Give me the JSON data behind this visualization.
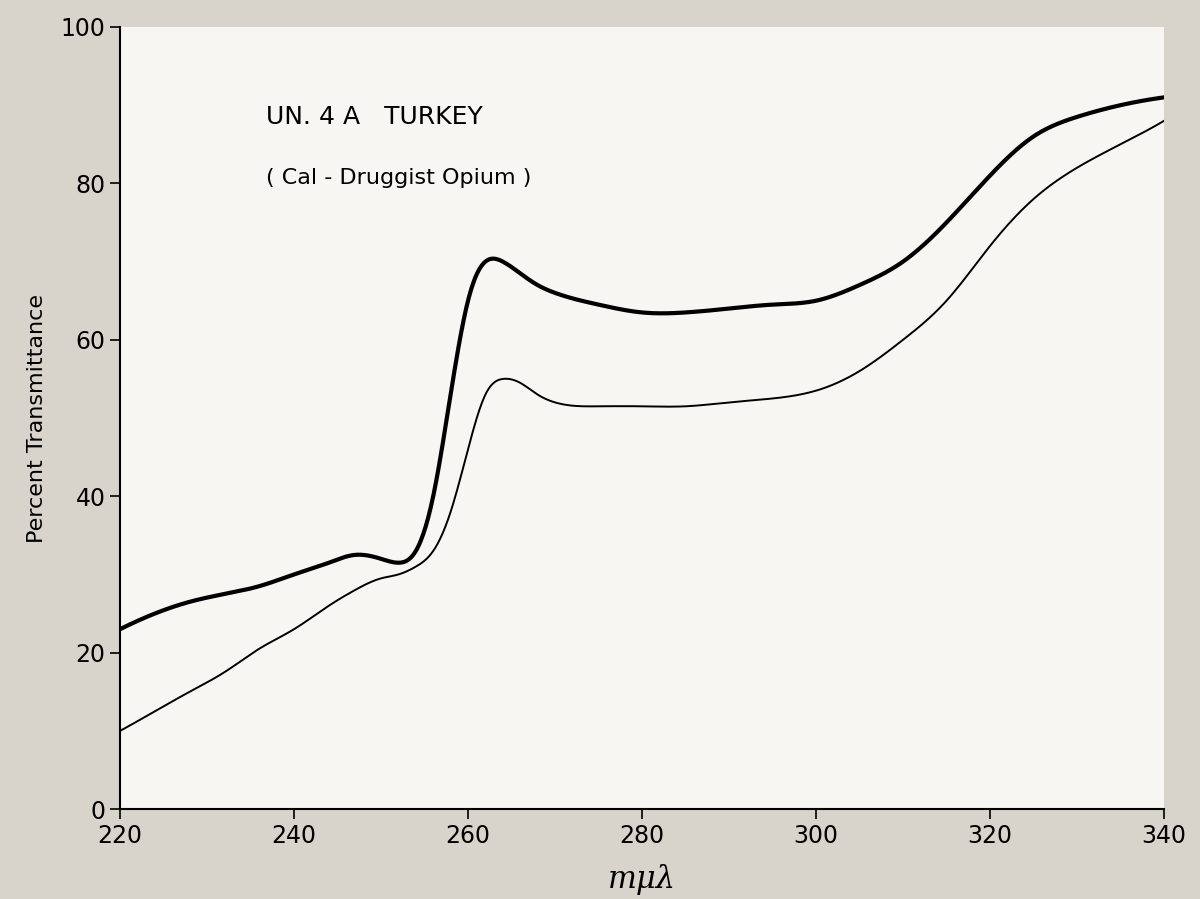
{
  "title_line1": "UN. 4 A   TURKEY",
  "title_line2": "( Cal - Druggist Opium )",
  "xlabel": "mμλ",
  "ylabel": "Percent Transmittance",
  "xlim": [
    220,
    340
  ],
  "ylim": [
    0,
    100
  ],
  "xticks": [
    220,
    240,
    260,
    280,
    300,
    320,
    340
  ],
  "yticks": [
    0,
    20,
    40,
    60,
    80,
    100
  ],
  "background_color": "#d8d4cc",
  "plot_bg_color": "#f8f6f2",
  "curve1_color": "#000000",
  "curve2_color": "#000000",
  "curve1_linewidth": 3.0,
  "curve2_linewidth": 1.4,
  "curve1_x": [
    220,
    224,
    228,
    232,
    236,
    240,
    244,
    247,
    250,
    252,
    254,
    256,
    258,
    260,
    262,
    264,
    266,
    268,
    270,
    275,
    280,
    285,
    290,
    295,
    300,
    305,
    310,
    315,
    320,
    325,
    330,
    335,
    340
  ],
  "curve1_y": [
    23,
    25,
    26.5,
    27.5,
    28.5,
    30,
    31.5,
    32.5,
    32,
    31.5,
    33,
    40,
    53,
    65,
    70,
    70,
    68.5,
    67,
    66,
    64.5,
    63.5,
    63.5,
    64,
    64.5,
    65,
    67,
    70,
    75,
    81,
    86,
    88.5,
    90,
    91
  ],
  "curve2_x": [
    220,
    224,
    228,
    232,
    236,
    240,
    244,
    247,
    250,
    252,
    254,
    256,
    258,
    260,
    262,
    264,
    266,
    268,
    270,
    275,
    280,
    285,
    290,
    295,
    300,
    305,
    310,
    315,
    320,
    325,
    330,
    335,
    340
  ],
  "curve2_y": [
    10,
    12.5,
    15,
    17.5,
    20.5,
    23,
    26,
    28,
    29.5,
    30,
    31,
    33,
    38,
    46,
    53,
    55,
    54.5,
    53,
    52,
    51.5,
    51.5,
    51.5,
    52,
    52.5,
    53.5,
    56,
    60,
    65,
    72,
    78,
    82,
    85,
    88
  ]
}
